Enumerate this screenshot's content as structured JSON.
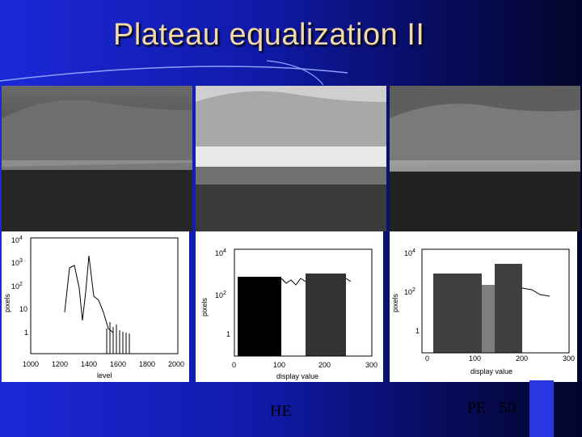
{
  "slide": {
    "title": "Plateau equalization II",
    "caption_he": "HE",
    "caption_pe": "PE",
    "page_number": "50",
    "colors": {
      "title": "#f2d9a8",
      "bg_left": "#1c28d8",
      "bg_right": "#03052a"
    }
  },
  "charts": {
    "left": {
      "ylabel": "pixels",
      "xlabel": "level",
      "yticks": [
        {
          "b": "10",
          "e": "4"
        },
        {
          "b": "10",
          "e": "3"
        },
        {
          "b": "10",
          "e": "2"
        },
        {
          "b": "10",
          "e": ""
        },
        {
          "b": "1",
          "e": ""
        }
      ],
      "xticks": [
        "1000",
        "1200",
        "1400",
        "1600",
        "1800",
        "2000"
      ]
    },
    "middle": {
      "ylabel": "pixels",
      "xlabel": "display value",
      "yticks": [
        {
          "b": "10",
          "e": "4"
        },
        {
          "b": "10",
          "e": "2"
        },
        {
          "b": "1",
          "e": ""
        }
      ],
      "xticks": [
        "0",
        "100",
        "200",
        "300"
      ]
    },
    "right": {
      "ylabel": "pixels",
      "xlabel": "display value",
      "yticks": [
        {
          "b": "10",
          "e": "4"
        },
        {
          "b": "10",
          "e": "2"
        },
        {
          "b": "1",
          "e": ""
        }
      ],
      "xticks": [
        "0",
        "100",
        "200",
        "300"
      ]
    }
  }
}
